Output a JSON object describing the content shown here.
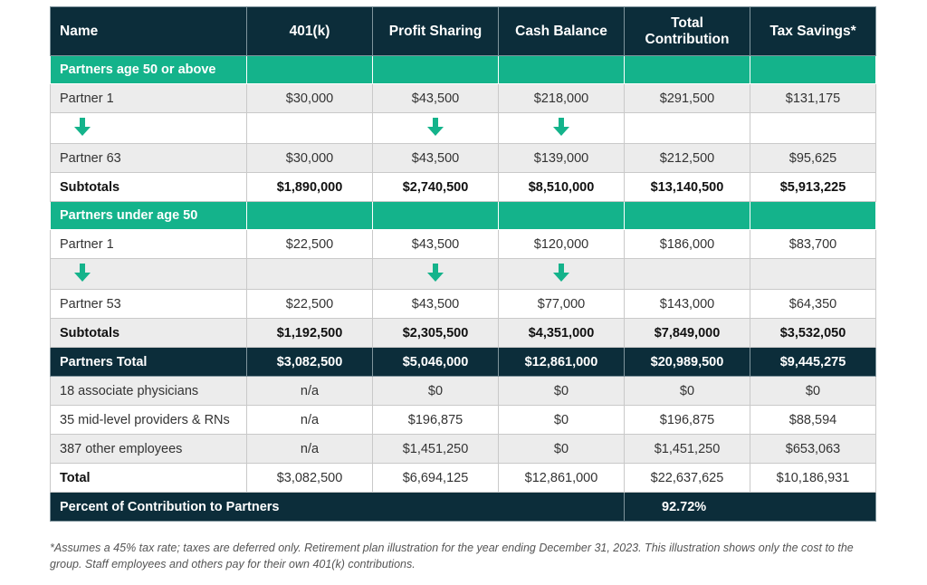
{
  "table": {
    "headers": [
      "Name",
      "401(k)",
      "Profit Sharing",
      "Cash Balance",
      "Total Contribution",
      "Tax Savings*"
    ],
    "header_total_line1": "Total",
    "header_total_line2": "Contribution",
    "section1_title": "Partners age 50 or above",
    "section1_rows": [
      [
        "Partner 1",
        "$30,000",
        "$43,500",
        "$218,000",
        "$291,500",
        "$131,175"
      ],
      [
        "Partner 63",
        "$30,000",
        "$43,500",
        "$139,000",
        "$212,500",
        "$95,625"
      ]
    ],
    "section1_subtotal": [
      "Subtotals",
      "$1,890,000",
      "$2,740,500",
      "$8,510,000",
      "$13,140,500",
      "$5,913,225"
    ],
    "section2_title": "Partners under age 50",
    "section2_rows": [
      [
        "Partner 1",
        "$22,500",
        "$43,500",
        "$120,000",
        "$186,000",
        "$83,700"
      ],
      [
        "Partner 53",
        "$22,500",
        "$43,500",
        "$77,000",
        "$143,000",
        "$64,350"
      ]
    ],
    "section2_subtotal": [
      "Subtotals",
      "$1,192,500",
      "$2,305,500",
      "$4,351,000",
      "$7,849,000",
      "$3,532,050"
    ],
    "partners_total": [
      "Partners Total",
      "$3,082,500",
      "$5,046,000",
      "$12,861,000",
      "$20,989,500",
      "$9,445,275"
    ],
    "other_rows": [
      [
        "18 associate physicians",
        "n/a",
        "$0",
        "$0",
        "$0",
        "$0"
      ],
      [
        "35 mid-level providers & RNs",
        "n/a",
        "$196,875",
        "$0",
        "$196,875",
        "$88,594"
      ],
      [
        "387 other employees",
        "n/a",
        "$1,451,250",
        "$0",
        "$1,451,250",
        "$653,063"
      ]
    ],
    "total_row": [
      "Total",
      "$3,082,500",
      "$6,694,125",
      "$12,861,000",
      "$22,637,625",
      "$10,186,931"
    ],
    "percent_label": "Percent of Contribution to Partners",
    "percent_value": "92.72%"
  },
  "colors": {
    "dark": "#0c2d3a",
    "accent": "#14b38b",
    "band": "#ececec"
  },
  "icons": {
    "continuation": "down-arrow-icon"
  },
  "footnote": "*Assumes a 45% tax rate; taxes are deferred only. Retirement plan illustration for the year ending December 31, 2023. This illustration shows only the cost to the group. Staff employees and others pay for their own 401(k) contributions."
}
